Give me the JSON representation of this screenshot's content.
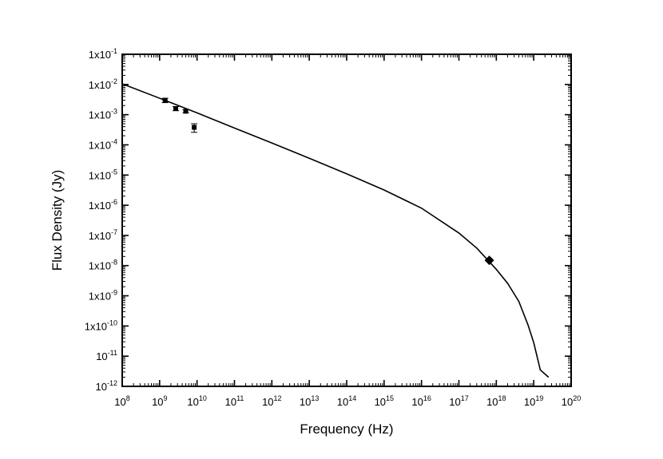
{
  "chart_data": {
    "type": "scatter",
    "title": "",
    "xlabel": "Frequency (Hz)",
    "ylabel": "Flux Density (Jy)",
    "x_scale": "log",
    "y_scale": "log",
    "xlim": [
      100000000.0,
      1e+20
    ],
    "ylim": [
      1e-12,
      0.1
    ],
    "grid": false,
    "x_ticks": [
      {
        "base": "10",
        "exp": "8"
      },
      {
        "base": "10",
        "exp": "9"
      },
      {
        "base": "10",
        "exp": "10"
      },
      {
        "base": "10",
        "exp": "11"
      },
      {
        "base": "10",
        "exp": "12"
      },
      {
        "base": "10",
        "exp": "13"
      },
      {
        "base": "10",
        "exp": "14"
      },
      {
        "base": "10",
        "exp": "15"
      },
      {
        "base": "10",
        "exp": "16"
      },
      {
        "base": "10",
        "exp": "17"
      },
      {
        "base": "10",
        "exp": "18"
      },
      {
        "base": "10",
        "exp": "19"
      },
      {
        "base": "10",
        "exp": "20"
      }
    ],
    "y_ticks": [
      {
        "base": "1x10",
        "exp": "-1"
      },
      {
        "base": "1x10",
        "exp": "-2"
      },
      {
        "base": "1x10",
        "exp": "-3"
      },
      {
        "base": "1x10",
        "exp": "-4"
      },
      {
        "base": "1x10",
        "exp": "-5"
      },
      {
        "base": "1x10",
        "exp": "-6"
      },
      {
        "base": "1x10",
        "exp": "-7"
      },
      {
        "base": "1x10",
        "exp": "-8"
      },
      {
        "base": "1x10",
        "exp": "-9"
      },
      {
        "base": "1x10",
        "exp": "-10"
      },
      {
        "base": "10",
        "exp": "-11"
      },
      {
        "base": "10",
        "exp": "-12"
      }
    ],
    "series": [
      {
        "marker": "square",
        "points": [
          {
            "x": 1400000000.0,
            "y": 0.003,
            "yerr_low": 0.0025,
            "yerr_high": 0.0035
          },
          {
            "x": 2700000000.0,
            "y": 0.0016,
            "yerr_low": 0.00135,
            "yerr_high": 0.00185
          },
          {
            "x": 5000000000.0,
            "y": 0.0013,
            "yerr_low": 0.00115,
            "yerr_high": 0.00145
          },
          {
            "x": 8400000000.0,
            "y": 0.00038,
            "yerr_low": 0.00026,
            "yerr_high": 0.0005
          }
        ]
      },
      {
        "marker": "diamond",
        "points": [
          {
            "x": 6.5e+17,
            "y": 1.5e-08
          }
        ]
      },
      {
        "type": "line",
        "points": [
          {
            "x": 100000000.0,
            "y": 0.0105
          },
          {
            "x": 1000000000.0,
            "y": 0.0035
          },
          {
            "x": 10000000000.0,
            "y": 0.00115
          },
          {
            "x": 100000000000.0,
            "y": 0.00036
          },
          {
            "x": 1000000000000.0,
            "y": 0.000115
          },
          {
            "x": 10000000000000.0,
            "y": 3.6e-05
          },
          {
            "x": 100000000000000.0,
            "y": 1.1e-05
          },
          {
            "x": 1000000000000000.0,
            "y": 3.2e-06
          },
          {
            "x": 1e+16,
            "y": 8e-07
          },
          {
            "x": 1e+17,
            "y": 1.2e-07
          },
          {
            "x": 3e+17,
            "y": 3.8e-08
          },
          {
            "x": 1e+18,
            "y": 7.5e-09
          },
          {
            "x": 2e+18,
            "y": 2.6e-09
          },
          {
            "x": 4e+18,
            "y": 6.5e-10
          },
          {
            "x": 7e+18,
            "y": 1.1e-10
          },
          {
            "x": 1e+19,
            "y": 2.8e-11
          },
          {
            "x": 1.5e+19,
            "y": 3.5e-12
          },
          {
            "x": 2.5e+19,
            "y": 2e-12
          }
        ]
      }
    ]
  }
}
